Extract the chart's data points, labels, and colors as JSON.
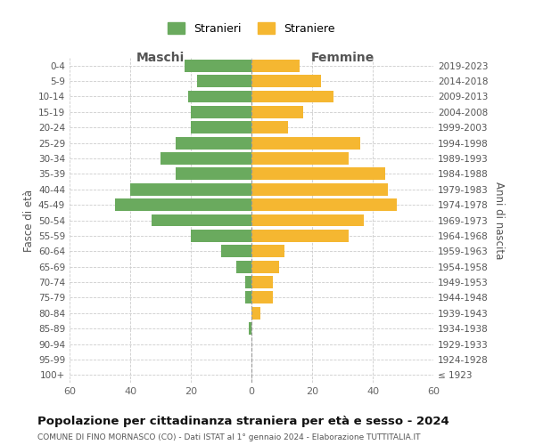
{
  "age_groups": [
    "0-4",
    "5-9",
    "10-14",
    "15-19",
    "20-24",
    "25-29",
    "30-34",
    "35-39",
    "40-44",
    "45-49",
    "50-54",
    "55-59",
    "60-64",
    "65-69",
    "70-74",
    "75-79",
    "80-84",
    "85-89",
    "90-94",
    "95-99",
    "100+"
  ],
  "birth_years": [
    "2019-2023",
    "2014-2018",
    "2009-2013",
    "2004-2008",
    "1999-2003",
    "1994-1998",
    "1989-1993",
    "1984-1988",
    "1979-1983",
    "1974-1978",
    "1969-1973",
    "1964-1968",
    "1959-1963",
    "1954-1958",
    "1949-1953",
    "1944-1948",
    "1939-1943",
    "1934-1938",
    "1929-1933",
    "1924-1928",
    "≤ 1923"
  ],
  "males": [
    22,
    18,
    21,
    20,
    20,
    25,
    30,
    25,
    40,
    45,
    33,
    20,
    10,
    5,
    2,
    2,
    0,
    1,
    0,
    0,
    0
  ],
  "females": [
    16,
    23,
    27,
    17,
    12,
    36,
    32,
    44,
    45,
    48,
    37,
    32,
    11,
    9,
    7,
    7,
    3,
    0,
    0,
    0,
    0
  ],
  "male_color": "#6aaa5e",
  "female_color": "#f5b731",
  "background_color": "#ffffff",
  "grid_color": "#cccccc",
  "title": "Popolazione per cittadinanza straniera per età e sesso - 2024",
  "subtitle": "COMUNE DI FINO MORNASCO (CO) - Dati ISTAT al 1° gennaio 2024 - Elaborazione TUTTITALIA.IT",
  "xlabel_left": "Maschi",
  "xlabel_right": "Femmine",
  "ylabel_left": "Fasce di età",
  "ylabel_right": "Anni di nascita",
  "legend_male": "Stranieri",
  "legend_female": "Straniere",
  "xlim": 60,
  "bar_height": 0.8
}
